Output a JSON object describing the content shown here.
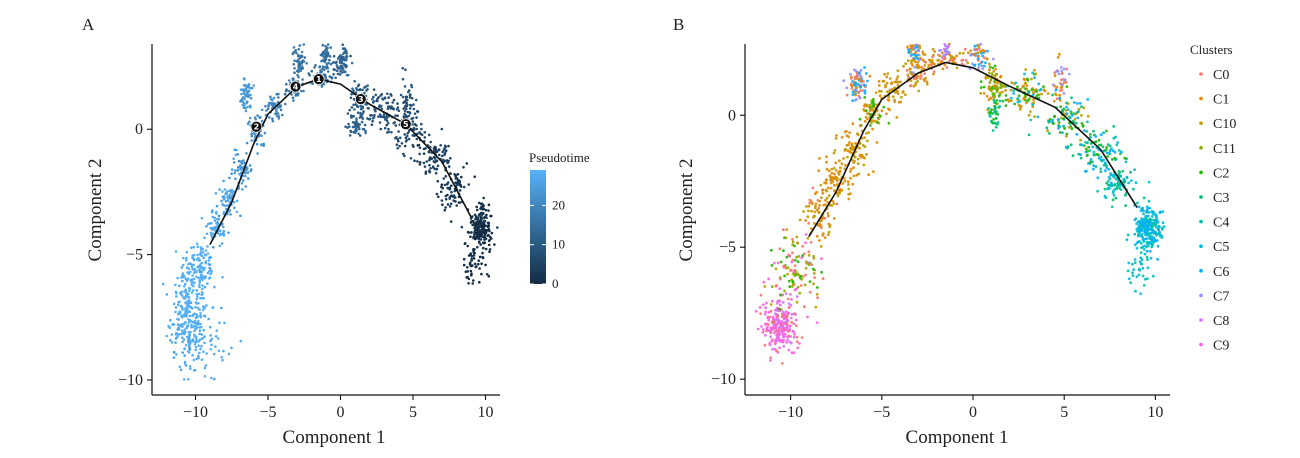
{
  "chart_data": [
    {
      "type": "scatter",
      "panel": "A",
      "xlabel": "Component 1",
      "ylabel": "Component 2",
      "xlim": [
        -13,
        11
      ],
      "ylim": [
        -10.6,
        3.4
      ],
      "x_ticks": [
        -10,
        -5,
        0,
        5,
        10
      ],
      "y_ticks": [
        -10,
        -5,
        0
      ],
      "grid": false,
      "color_by": "Pseudotime",
      "colorbar": {
        "title": "Pseudotime",
        "ticks": [
          0,
          10,
          20
        ],
        "range": [
          0,
          29
        ],
        "color_low": "#132b43",
        "color_high": "#56b1f7"
      },
      "trajectory": [
        [
          -9,
          -4.6
        ],
        [
          -7.5,
          -2.9
        ],
        [
          -6,
          -0.6
        ],
        [
          -5,
          0.6
        ],
        [
          -3,
          1.7
        ],
        [
          -1.5,
          2.0
        ],
        [
          0,
          1.8
        ],
        [
          2,
          1.0
        ],
        [
          4.5,
          0.2
        ],
        [
          7,
          -1.3
        ],
        [
          9,
          -3.5
        ]
      ],
      "branch_points": [
        {
          "label": "1",
          "x": -1.5,
          "y": 2.0
        },
        {
          "label": "2",
          "x": -5.8,
          "y": 0.1
        },
        {
          "label": "3",
          "x": 1.4,
          "y": 1.2
        },
        {
          "label": "4",
          "x": -3.1,
          "y": 1.7
        },
        {
          "label": "5",
          "x": 4.5,
          "y": 0.2
        }
      ],
      "cell_regions": [
        {
          "x": -9.8,
          "y": -5.5,
          "sx": 0.6,
          "sy": 0.55,
          "t": 29,
          "n": 110
        },
        {
          "x": -10.5,
          "y": -7.5,
          "sx": 0.6,
          "sy": 0.9,
          "t": 29,
          "n": 260
        },
        {
          "x": -9.5,
          "y": -8.3,
          "sx": 0.9,
          "sy": 0.8,
          "t": 29,
          "n": 70
        },
        {
          "x": -8.6,
          "y": -4.0,
          "sx": 0.4,
          "sy": 0.4,
          "t": 27,
          "n": 60
        },
        {
          "x": -7.7,
          "y": -2.9,
          "sx": 0.35,
          "sy": 0.35,
          "t": 26,
          "n": 60
        },
        {
          "x": -6.8,
          "y": -1.6,
          "sx": 0.35,
          "sy": 0.35,
          "t": 24,
          "n": 60
        },
        {
          "x": -5.8,
          "y": 0.0,
          "sx": 0.35,
          "sy": 0.35,
          "t": 22,
          "n": 55
        },
        {
          "x": -6.5,
          "y": 1.3,
          "sx": 0.25,
          "sy": 0.35,
          "t": 24,
          "n": 55
        },
        {
          "x": -4.5,
          "y": 0.9,
          "sx": 0.3,
          "sy": 0.3,
          "t": 20,
          "n": 50
        },
        {
          "x": -3.2,
          "y": 1.6,
          "sx": 0.3,
          "sy": 0.25,
          "t": 17,
          "n": 50
        },
        {
          "x": -2.8,
          "y": 2.7,
          "sx": 0.2,
          "sy": 0.35,
          "t": 16,
          "n": 60
        },
        {
          "x": -1.3,
          "y": 2.1,
          "sx": 0.4,
          "sy": 0.2,
          "t": 15,
          "n": 45
        },
        {
          "x": -1.0,
          "y": 2.9,
          "sx": 0.2,
          "sy": 0.3,
          "t": 15,
          "n": 50
        },
        {
          "x": 0.0,
          "y": 2.5,
          "sx": 0.3,
          "sy": 0.3,
          "t": 13,
          "n": 50
        },
        {
          "x": 0.3,
          "y": 2.9,
          "sx": 0.2,
          "sy": 0.3,
          "t": 12,
          "n": 30
        },
        {
          "x": 1.3,
          "y": 1.2,
          "sx": 0.35,
          "sy": 0.3,
          "t": 11,
          "n": 60
        },
        {
          "x": 1.1,
          "y": 0.2,
          "sx": 0.25,
          "sy": 0.4,
          "t": 12,
          "n": 50
        },
        {
          "x": 3.0,
          "y": 0.7,
          "sx": 0.6,
          "sy": 0.4,
          "t": 9,
          "n": 90
        },
        {
          "x": 4.7,
          "y": 1.0,
          "sx": 0.2,
          "sy": 0.5,
          "t": 8,
          "n": 45
        },
        {
          "x": 4.8,
          "y": 0.0,
          "sx": 0.6,
          "sy": 0.4,
          "t": 7,
          "n": 80
        },
        {
          "x": 6.5,
          "y": -1.1,
          "sx": 0.6,
          "sy": 0.4,
          "t": 5,
          "n": 90
        },
        {
          "x": 7.8,
          "y": -2.4,
          "sx": 0.5,
          "sy": 0.4,
          "t": 3,
          "n": 80
        },
        {
          "x": 9.6,
          "y": -4.0,
          "sx": 0.4,
          "sy": 0.45,
          "t": 1,
          "n": 200
        },
        {
          "x": 9.0,
          "y": -5.5,
          "sx": 0.5,
          "sy": 0.5,
          "t": 0,
          "n": 40
        }
      ]
    },
    {
      "type": "scatter",
      "panel": "B",
      "xlabel": "Component 1",
      "ylabel": "Component 2",
      "xlim": [
        -12.5,
        10.8
      ],
      "ylim": [
        -10.6,
        2.7
      ],
      "x_ticks": [
        -10,
        -5,
        0,
        5,
        10
      ],
      "y_ticks": [
        -10,
        -5,
        0
      ],
      "grid": false,
      "color_by": "Clusters",
      "legend": {
        "title": "Clusters",
        "placement": "right",
        "entries": [
          {
            "name": "C0",
            "color": "#f8766d"
          },
          {
            "name": "C1",
            "color": "#e18a00"
          },
          {
            "name": "C10",
            "color": "#be9c00"
          },
          {
            "name": "C11",
            "color": "#8cab00"
          },
          {
            "name": "C2",
            "color": "#24b700"
          },
          {
            "name": "C3",
            "color": "#00be70"
          },
          {
            "name": "C4",
            "color": "#00c1ab"
          },
          {
            "name": "C5",
            "color": "#00bbda"
          },
          {
            "name": "C6",
            "color": "#00acfc"
          },
          {
            "name": "C7",
            "color": "#8b93ff"
          },
          {
            "name": "C8",
            "color": "#d575fe"
          },
          {
            "name": "C9",
            "color": "#f962dd"
          }
        ]
      },
      "trajectory": [
        [
          -9,
          -4.6
        ],
        [
          -7.5,
          -2.9
        ],
        [
          -6,
          -0.6
        ],
        [
          -5,
          0.6
        ],
        [
          -3,
          1.6
        ],
        [
          -1.5,
          2.0
        ],
        [
          0,
          1.8
        ],
        [
          2,
          1.1
        ],
        [
          4.5,
          0.3
        ],
        [
          7,
          -1.3
        ],
        [
          9,
          -3.5
        ]
      ],
      "cell_regions": [
        {
          "x": -10.6,
          "y": -8.0,
          "sx": 0.5,
          "sy": 0.5,
          "c": [
            11,
            11,
            10,
            0
          ],
          "n": 230
        },
        {
          "x": -9.8,
          "y": -6.0,
          "sx": 0.7,
          "sy": 0.8,
          "c": [
            0,
            3,
            11,
            4,
            2
          ],
          "n": 120
        },
        {
          "x": -8.5,
          "y": -3.8,
          "sx": 0.45,
          "sy": 0.45,
          "c": [
            1,
            1,
            2,
            0
          ],
          "n": 80
        },
        {
          "x": -7.5,
          "y": -2.5,
          "sx": 0.4,
          "sy": 0.4,
          "c": [
            1,
            1,
            2
          ],
          "n": 80
        },
        {
          "x": -6.5,
          "y": -1.3,
          "sx": 0.4,
          "sy": 0.4,
          "c": [
            1,
            2,
            1
          ],
          "n": 80
        },
        {
          "x": -5.5,
          "y": 0.1,
          "sx": 0.35,
          "sy": 0.35,
          "c": [
            1,
            2,
            4
          ],
          "n": 70
        },
        {
          "x": -6.4,
          "y": 1.2,
          "sx": 0.3,
          "sy": 0.3,
          "c": [
            1,
            8,
            9,
            0
          ],
          "n": 80
        },
        {
          "x": -4.5,
          "y": 1.0,
          "sx": 0.35,
          "sy": 0.3,
          "c": [
            1,
            2
          ],
          "n": 60
        },
        {
          "x": -3.0,
          "y": 1.6,
          "sx": 0.4,
          "sy": 0.3,
          "c": [
            1,
            2,
            0
          ],
          "n": 70
        },
        {
          "x": -3.2,
          "y": 2.4,
          "sx": 0.2,
          "sy": 0.25,
          "c": [
            9,
            1,
            8
          ],
          "n": 50
        },
        {
          "x": -1.5,
          "y": 2.1,
          "sx": 0.5,
          "sy": 0.2,
          "c": [
            1,
            0,
            2
          ],
          "n": 60
        },
        {
          "x": -1.6,
          "y": 2.5,
          "sx": 0.15,
          "sy": 0.15,
          "c": [
            10,
            9
          ],
          "n": 25
        },
        {
          "x": 0.3,
          "y": 2.3,
          "sx": 0.3,
          "sy": 0.3,
          "c": [
            1,
            8,
            9,
            0
          ],
          "n": 60
        },
        {
          "x": 1.2,
          "y": 1.1,
          "sx": 0.3,
          "sy": 0.4,
          "c": [
            2,
            3,
            4,
            1
          ],
          "n": 80
        },
        {
          "x": 1.2,
          "y": 0.1,
          "sx": 0.2,
          "sy": 0.3,
          "c": [
            5,
            6,
            4
          ],
          "n": 40
        },
        {
          "x": 3.0,
          "y": 0.8,
          "sx": 0.6,
          "sy": 0.4,
          "c": [
            2,
            4,
            1,
            7
          ],
          "n": 100
        },
        {
          "x": 4.8,
          "y": 1.2,
          "sx": 0.2,
          "sy": 0.4,
          "c": [
            0,
            9,
            1
          ],
          "n": 40
        },
        {
          "x": 5.0,
          "y": 0.0,
          "sx": 0.6,
          "sy": 0.4,
          "c": [
            4,
            5,
            8,
            2
          ],
          "n": 90
        },
        {
          "x": 6.8,
          "y": -1.3,
          "sx": 0.6,
          "sy": 0.4,
          "c": [
            5,
            6,
            8,
            4
          ],
          "n": 100
        },
        {
          "x": 8.0,
          "y": -2.6,
          "sx": 0.5,
          "sy": 0.4,
          "c": [
            6,
            7,
            5
          ],
          "n": 90
        },
        {
          "x": 9.6,
          "y": -4.3,
          "sx": 0.4,
          "sy": 0.45,
          "c": [
            7,
            7,
            6,
            8
          ],
          "n": 230
        },
        {
          "x": 9.0,
          "y": -6.0,
          "sx": 0.4,
          "sy": 0.4,
          "c": [
            7,
            6
          ],
          "n": 30
        }
      ]
    }
  ]
}
